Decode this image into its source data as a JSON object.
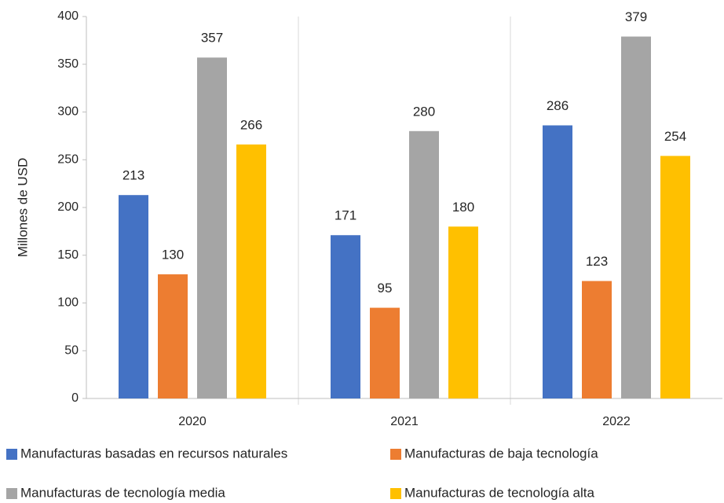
{
  "chart_data": {
    "type": "bar",
    "y_label": "Millones de USD",
    "categories": [
      "2020",
      "2021",
      "2022"
    ],
    "series": [
      {
        "name": "Manufacturas basadas en recursos naturales",
        "color": "#4472c4",
        "values": [
          213,
          171,
          286
        ]
      },
      {
        "name": "Manufacturas de baja tecnología",
        "color": "#ed7d31",
        "values": [
          130,
          95,
          123
        ]
      },
      {
        "name": "Manufacturas de tecnología media",
        "color": "#a5a5a5",
        "values": [
          357,
          280,
          379
        ]
      },
      {
        "name": "Manufacturas de tecnología alta",
        "color": "#ffc000",
        "values": [
          266,
          180,
          254
        ]
      }
    ],
    "ylim": [
      0,
      400
    ],
    "yticks": [
      0,
      50,
      100,
      150,
      200,
      250,
      300,
      350,
      400
    ],
    "grid": false
  }
}
